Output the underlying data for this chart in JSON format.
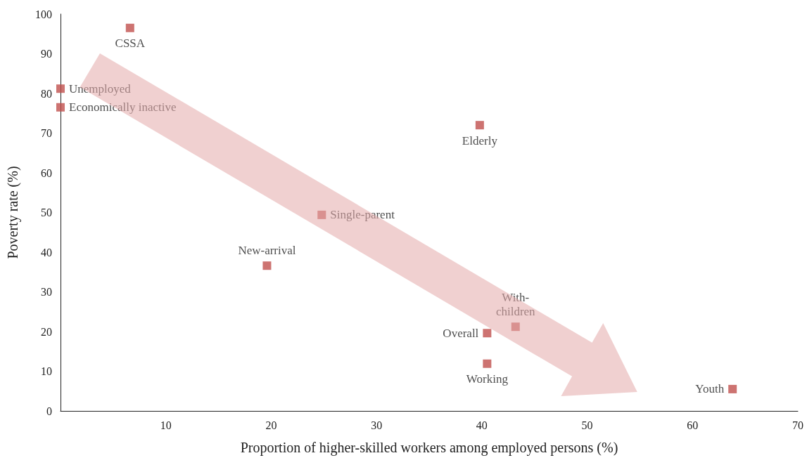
{
  "chart_data": {
    "type": "scatter",
    "xlabel": "Proportion of higher-skilled workers among employed persons (%)",
    "ylabel": "Poverty rate (%)",
    "x": [
      6.6,
      0,
      0,
      39.8,
      24.8,
      19.6,
      43.2,
      40.5,
      40.5,
      63.8
    ],
    "series": [
      {
        "color": "#c0504d",
        "values": [
          96.5,
          81.2,
          76.5,
          72.0,
          49.4,
          36.6,
          21.2,
          19.6,
          11.9,
          5.5
        ]
      }
    ],
    "marker": "square",
    "xlim": [
      0,
      70
    ],
    "xticks": [
      10,
      20,
      30,
      40,
      50,
      60,
      70
    ],
    "ylim": [
      0,
      100
    ],
    "yticks": [
      0,
      10,
      20,
      30,
      40,
      50,
      60,
      70,
      80,
      90,
      100
    ],
    "annotations": [
      {
        "text": "CSSA",
        "x": 6.6,
        "y": 96.5
      },
      {
        "text": "Unemployed",
        "x": 0,
        "y": 81.2
      },
      {
        "text": "Economically inactive",
        "x": 0,
        "y": 76.5
      },
      {
        "text": "Elderly",
        "x": 39.8,
        "y": 72.0
      },
      {
        "text": "Single-parent",
        "x": 24.8,
        "y": 49.4
      },
      {
        "text": "New-arrival",
        "x": 19.6,
        "y": 36.6
      },
      {
        "text": "With-\nchildren",
        "x": 43.2,
        "y": 21.2
      },
      {
        "text": "Overall",
        "x": 40.5,
        "y": 19.6
      },
      {
        "text": "Working",
        "x": 40.5,
        "y": 11.9
      },
      {
        "text": "Youth",
        "x": 63.8,
        "y": 5.5
      }
    ]
  }
}
